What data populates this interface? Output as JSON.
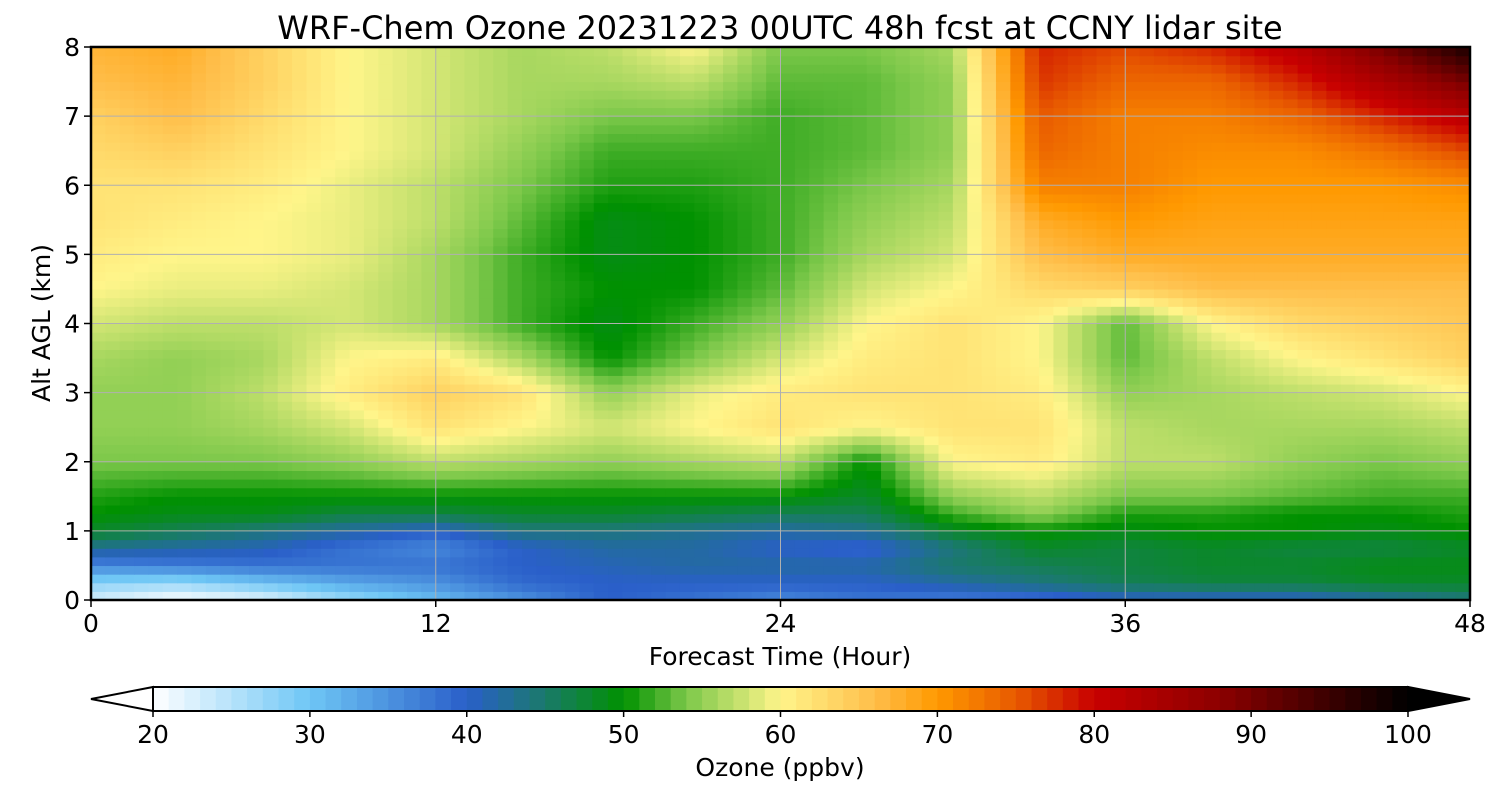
{
  "chart_data": {
    "type": "heatmap",
    "title": "WRF-Chem Ozone  20231223 00UTC 48h fcst at CCNY lidar site",
    "xlabel": "Forecast Time (Hour)",
    "ylabel": "Alt AGL (km)",
    "xlim": [
      0,
      48
    ],
    "ylim": [
      0,
      8
    ],
    "x_ticks": [
      "0",
      "12",
      "24",
      "36",
      "48"
    ],
    "y_ticks": [
      "0",
      "1",
      "2",
      "3",
      "4",
      "5",
      "6",
      "7",
      "8"
    ],
    "grid": true,
    "colorbar": {
      "label": "Ozone  (ppbv)",
      "min": 20,
      "max": 100,
      "extend": "both",
      "ticks": [
        "20",
        "30",
        "40",
        "50",
        "60",
        "70",
        "80",
        "90",
        "100"
      ],
      "color_stops": [
        {
          "value": 20,
          "color": "#ffffff"
        },
        {
          "value": 30,
          "color": "#6ec6f5"
        },
        {
          "value": 40,
          "color": "#2a5fc9"
        },
        {
          "value": 45,
          "color": "#1a7a6a"
        },
        {
          "value": 50,
          "color": "#009100"
        },
        {
          "value": 54,
          "color": "#7cc84a"
        },
        {
          "value": 60,
          "color": "#fff58a"
        },
        {
          "value": 66,
          "color": "#ffbe4a"
        },
        {
          "value": 70,
          "color": "#ff9900"
        },
        {
          "value": 75,
          "color": "#e85a00"
        },
        {
          "value": 80,
          "color": "#c80000"
        },
        {
          "value": 88,
          "color": "#8c0000"
        },
        {
          "value": 100,
          "color": "#000000"
        }
      ]
    },
    "x": [
      0,
      3,
      6,
      9,
      12,
      15,
      18,
      21,
      24,
      27,
      30,
      33,
      36,
      39,
      42,
      45,
      48
    ],
    "y": [
      0,
      0.25,
      0.5,
      0.75,
      1,
      1.25,
      1.5,
      2,
      2.5,
      3,
      3.5,
      4,
      4.5,
      5,
      5.5,
      6,
      6.5,
      7,
      7.5,
      8
    ],
    "z": [
      [
        23,
        20,
        22,
        27,
        31,
        35,
        40,
        38,
        36,
        38,
        37,
        38,
        40,
        40,
        40,
        42,
        44
      ],
      [
        28,
        27,
        30,
        33,
        35,
        39,
        40,
        40,
        40,
        40,
        42,
        44,
        46,
        47,
        47,
        48,
        48
      ],
      [
        36,
        37,
        38,
        38,
        38,
        40,
        41,
        42,
        42,
        42,
        45,
        46,
        47,
        48,
        48,
        49,
        49
      ],
      [
        43,
        42,
        41,
        38,
        36,
        40,
        42,
        42,
        40,
        39,
        44,
        48,
        47,
        48,
        47,
        47,
        48
      ],
      [
        48,
        46,
        44,
        42,
        40,
        44,
        44,
        43,
        42,
        43,
        48,
        50,
        49,
        50,
        50,
        49,
        50
      ],
      [
        50,
        49,
        49,
        47,
        47,
        48,
        48,
        47,
        46,
        46,
        52,
        55,
        51,
        51,
        50,
        50,
        51
      ],
      [
        51,
        50,
        50,
        50,
        50,
        50,
        50,
        50,
        50,
        48,
        55,
        57,
        54,
        54,
        53,
        52,
        52
      ],
      [
        54,
        54,
        54,
        55,
        57,
        56,
        55,
        56,
        57,
        50,
        60,
        61,
        57,
        57,
        55,
        54,
        55
      ],
      [
        55,
        55,
        56,
        58,
        62,
        60,
        58,
        60,
        62,
        60,
        62,
        62,
        57,
        56,
        56,
        56,
        57
      ],
      [
        55,
        55,
        57,
        61,
        64,
        62,
        55,
        59,
        61,
        62,
        62,
        61,
        55,
        56,
        57,
        58,
        60
      ],
      [
        56,
        55,
        56,
        60,
        61,
        56,
        50,
        54,
        58,
        61,
        62,
        60,
        53,
        57,
        60,
        62,
        64
      ],
      [
        58,
        57,
        57,
        58,
        56,
        52,
        49,
        52,
        55,
        60,
        62,
        60,
        53,
        60,
        63,
        64,
        65
      ],
      [
        60,
        59,
        59,
        58,
        56,
        52,
        50,
        50,
        53,
        58,
        60,
        63,
        64,
        66,
        66,
        66,
        66
      ],
      [
        61,
        60,
        60,
        59,
        56,
        52,
        49,
        50,
        52,
        56,
        58,
        66,
        68,
        68,
        68,
        68,
        68
      ],
      [
        62,
        61,
        60,
        59,
        57,
        53,
        49,
        50,
        52,
        55,
        57,
        68,
        70,
        69,
        69,
        69,
        69
      ],
      [
        62,
        62,
        61,
        59,
        57,
        54,
        51,
        51,
        52,
        54,
        56,
        72,
        72,
        70,
        70,
        70,
        71
      ],
      [
        63,
        64,
        62,
        60,
        58,
        55,
        52,
        52,
        52,
        53,
        55,
        74,
        72,
        71,
        71,
        73,
        76
      ],
      [
        64,
        66,
        63,
        60,
        58,
        56,
        54,
        54,
        52,
        53,
        55,
        75,
        72,
        72,
        74,
        78,
        82
      ],
      [
        66,
        67,
        64,
        60,
        58,
        56,
        56,
        57,
        53,
        53,
        55,
        77,
        74,
        74,
        78,
        84,
        90
      ],
      [
        67,
        68,
        64,
        60,
        58,
        56,
        57,
        60,
        54,
        54,
        56,
        78,
        76,
        78,
        82,
        90,
        98
      ]
    ]
  }
}
